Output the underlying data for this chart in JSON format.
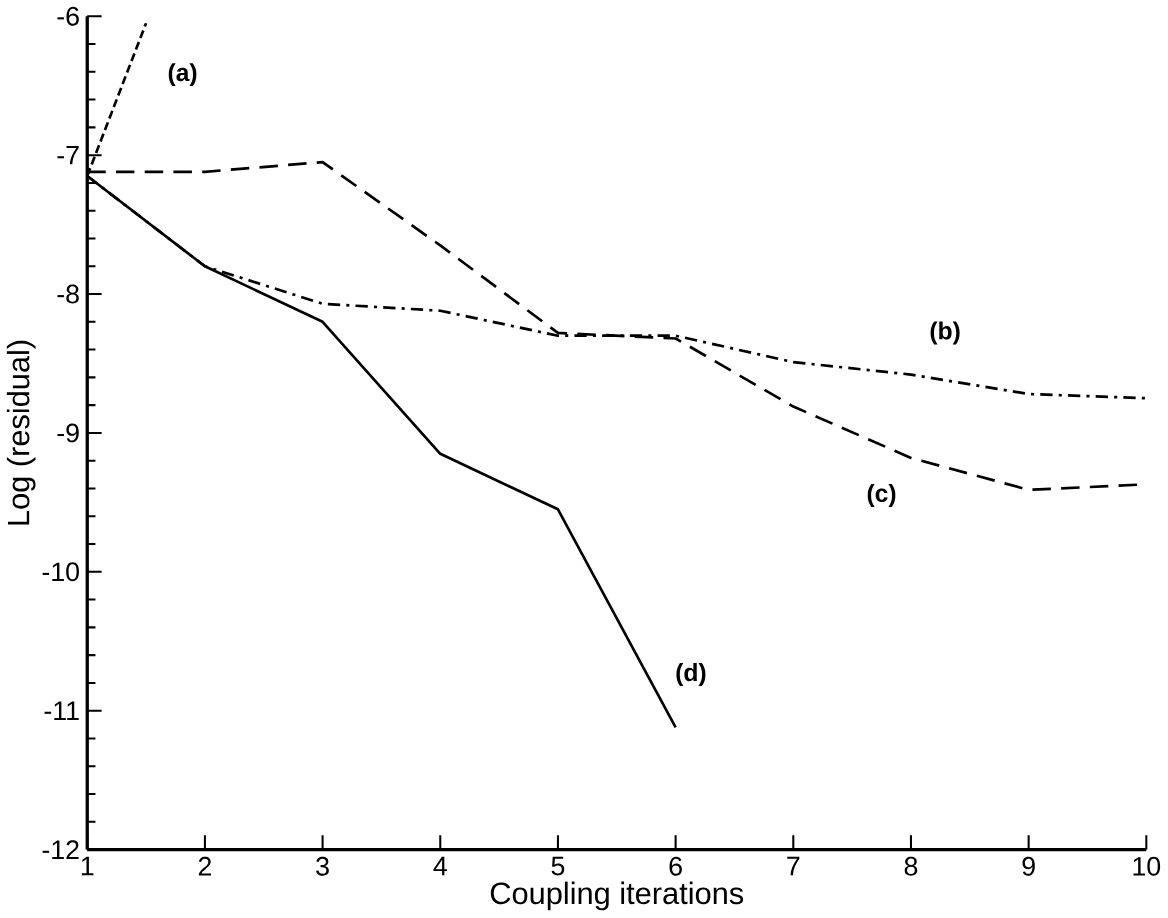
{
  "chart_data": {
    "type": "line",
    "xlabel": "Coupling iterations",
    "ylabel": "Log (residual)",
    "xlim": [
      1,
      10
    ],
    "ylim": [
      -12,
      -6
    ],
    "xticks": [
      1,
      2,
      3,
      4,
      5,
      6,
      7,
      8,
      9,
      10
    ],
    "yticks": [
      -12,
      -11,
      -10,
      -9,
      -8,
      -7,
      -6
    ],
    "grid": false,
    "marker": "none",
    "series": [
      {
        "color": "#000000",
        "line_style": "dashed",
        "x": [
          1,
          1.5
        ],
        "values": [
          -7.15,
          -6.05
        ]
      },
      {
        "color": "#000000",
        "line_style": "dashdot",
        "x": [
          1,
          2,
          3,
          4,
          5,
          6,
          7,
          8,
          9,
          10
        ],
        "values": [
          -7.15,
          -7.8,
          -8.07,
          -8.12,
          -8.3,
          -8.3,
          -8.49,
          -8.58,
          -8.72,
          -8.75
        ]
      },
      {
        "color": "#000000",
        "line_style": "longdashed",
        "x": [
          1,
          2,
          3,
          4,
          5,
          6,
          7,
          8,
          9,
          10
        ],
        "values": [
          -7.12,
          -7.12,
          -7.05,
          -7.65,
          -8.28,
          -8.32,
          -8.81,
          -9.18,
          -9.41,
          -9.37
        ]
      },
      {
        "color": "#000000",
        "line_style": "solid",
        "x": [
          1,
          2,
          3,
          4,
          5,
          6
        ],
        "values": [
          -7.15,
          -7.8,
          -8.2,
          -9.15,
          -9.55,
          -11.12
        ]
      }
    ],
    "annotations": [
      "**(a)**",
      "**(b)**",
      "**(c)**",
      "**(d)**"
    ]
  }
}
